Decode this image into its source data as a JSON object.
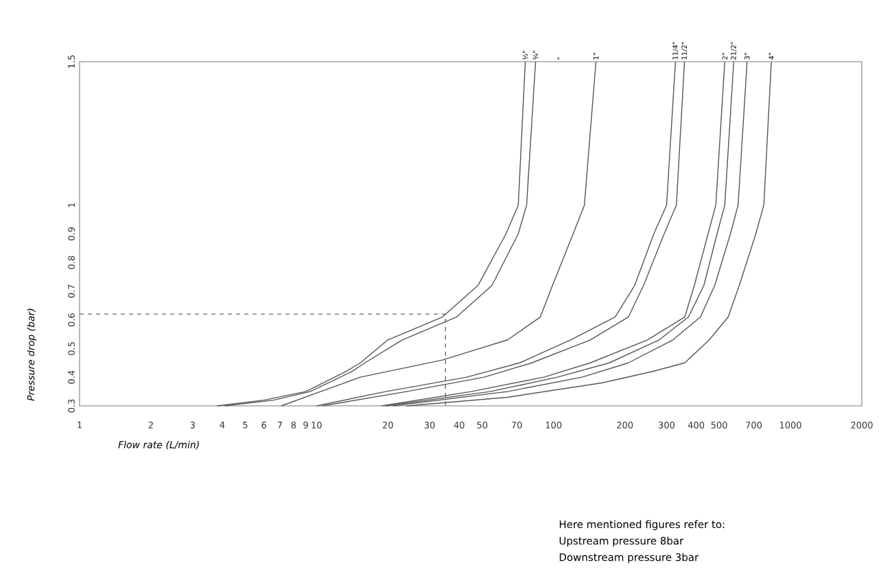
{
  "chart_data": {
    "type": "line",
    "xlabel": "Flow rate (L/min)",
    "ylabel": "Pressure drop (bar)",
    "log": "x",
    "grid": false,
    "legend": false,
    "marker": "none",
    "line_style": "solid",
    "xlim": [
      1,
      2000
    ],
    "ylim": [
      0.3,
      1.5
    ],
    "xticks": [
      1,
      2,
      3,
      4,
      5,
      6,
      7,
      8,
      9,
      10,
      20,
      30,
      40,
      50,
      70,
      100,
      200,
      300,
      400,
      500,
      700,
      1000,
      2000
    ],
    "yticks": [
      0.3,
      0.4,
      0.5,
      0.6,
      0.7,
      0.8,
      0.9,
      1,
      1.5
    ],
    "series": [
      {
        "name": "½\"",
        "color": "#555555",
        "x": [
          3.8,
          6,
          9,
          13.3,
          15.3,
          20,
          34,
          48,
          63,
          71,
          76
        ],
        "values": [
          0.3,
          0.32,
          0.35,
          0.42,
          0.45,
          0.53,
          0.61,
          0.72,
          0.9,
          1.0,
          1.5
        ]
      },
      {
        "name": "¾\"",
        "color": "#555555",
        "x": [
          4.1,
          6.6,
          9.4,
          14.1,
          16,
          23,
          39,
          55,
          71,
          77,
          84
        ],
        "values": [
          0.3,
          0.32,
          0.35,
          0.42,
          0.45,
          0.53,
          0.61,
          0.72,
          0.9,
          1.0,
          1.5
        ]
      },
      {
        "name": "1\"",
        "color": "#555555",
        "x": [
          7.1,
          10.4,
          15.3,
          34,
          64,
          88,
          99,
          121,
          135,
          151
        ],
        "values": [
          0.3,
          0.35,
          0.4,
          0.46,
          0.53,
          0.61,
          0.72,
          0.9,
          1.0,
          1.5
        ]
      },
      {
        "name": "11/4\"",
        "color": "#555555",
        "x": [
          10,
          19.6,
          43,
          72,
          118,
          182,
          220,
          265,
          300,
          327
        ],
        "values": [
          0.3,
          0.35,
          0.4,
          0.45,
          0.53,
          0.61,
          0.72,
          0.9,
          1.0,
          1.5
        ]
      },
      {
        "name": "11/2\"",
        "color": "#555555",
        "x": [
          10.6,
          24,
          51,
          81,
          143,
          207,
          240,
          293,
          330,
          357
        ],
        "values": [
          0.3,
          0.35,
          0.4,
          0.45,
          0.53,
          0.61,
          0.72,
          0.9,
          1.0,
          1.5
        ]
      },
      {
        "name": "2\"",
        "color": "#555555",
        "x": [
          18.8,
          45,
          91,
          143,
          249,
          358,
          393,
          449,
          484,
          528
        ],
        "values": [
          0.3,
          0.35,
          0.4,
          0.45,
          0.53,
          0.61,
          0.72,
          0.9,
          1.0,
          1.5
        ]
      },
      {
        "name": "21/2\"",
        "color": "#555555",
        "x": [
          19.6,
          54,
          104,
          172,
          279,
          371,
          431,
          490,
          528,
          576
        ],
        "values": [
          0.3,
          0.35,
          0.4,
          0.45,
          0.53,
          0.61,
          0.72,
          0.9,
          1.0,
          1.5
        ]
      },
      {
        "name": "3\"",
        "color": "#555555",
        "x": [
          21,
          64,
          132,
          207,
          319,
          417,
          479,
          558,
          601,
          656
        ],
        "values": [
          0.3,
          0.35,
          0.4,
          0.45,
          0.53,
          0.61,
          0.72,
          0.9,
          1.0,
          1.5
        ]
      },
      {
        "name": "4\"",
        "color": "#555555",
        "x": [
          24,
          64,
          160,
          262,
          358,
          454,
          546,
          608,
          714,
          772,
          830
        ],
        "values": [
          0.3,
          0.33,
          0.38,
          0.42,
          0.45,
          0.53,
          0.61,
          0.72,
          0.9,
          1.0,
          1.5
        ]
      },
      {
        "color": "#666666",
        "line_style": "dashed",
        "x": [
          1,
          35,
          35
        ],
        "values": [
          0.62,
          0.62,
          0.3
        ]
      }
    ],
    "annotations": [
      "\"",
      "Here mentioned figures refer to:",
      "Upstream pressure 8bar",
      "Downstream pressure 3bar"
    ]
  }
}
